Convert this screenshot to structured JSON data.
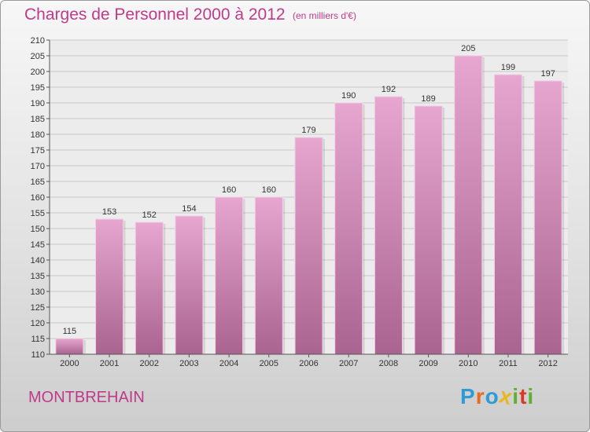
{
  "title": "Charges de Personnel 2000 à 2012",
  "subtitle": "(en milliers d'€)",
  "commune": "MONTBREHAIN",
  "logo": {
    "letters": [
      "P",
      "r",
      "o",
      "x",
      "i",
      "t",
      "i"
    ],
    "colors": [
      "#2e9ad8",
      "#e86a1f",
      "#2e9ad8",
      "#e8b820",
      "#5fb030",
      "#d83a2a",
      "#5fb030"
    ]
  },
  "colors": {
    "bar_top": "#e6a6cf",
    "bar_bottom": "#a9648f",
    "accent": "#c03a8a"
  },
  "chart_data": {
    "type": "bar",
    "categories": [
      "2000",
      "2001",
      "2002",
      "2003",
      "2004",
      "2005",
      "2006",
      "2007",
      "2008",
      "2009",
      "2010",
      "2011",
      "2012"
    ],
    "values": [
      115,
      153,
      152,
      154,
      160,
      160,
      179,
      190,
      192,
      189,
      205,
      199,
      197
    ],
    "ylim": [
      110,
      210
    ],
    "yticks": [
      110,
      115,
      120,
      125,
      130,
      135,
      140,
      145,
      150,
      155,
      160,
      165,
      170,
      175,
      180,
      185,
      190,
      195,
      200,
      205,
      210
    ],
    "grid": true
  }
}
